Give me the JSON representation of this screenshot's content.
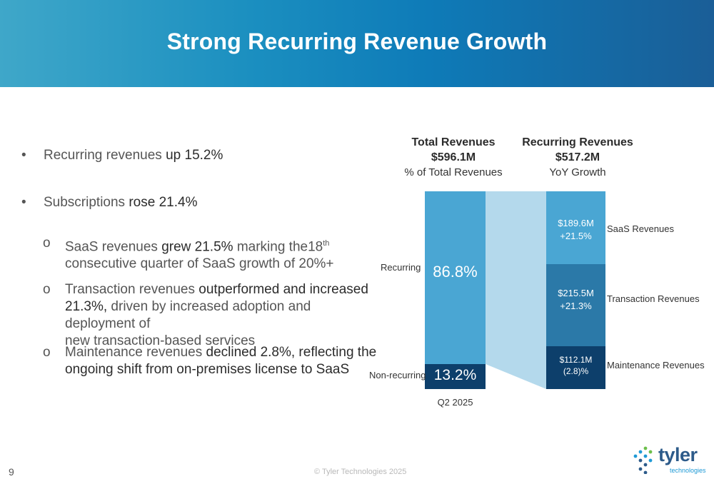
{
  "title": "Strong Recurring Revenue Growth",
  "bullets": {
    "b1_prefix": "Recurring revenues ",
    "b1_em": "up 15.2%",
    "b2_prefix": "Subscriptions ",
    "b2_em": "rose 21.4%",
    "s1_prefix": "SaaS revenues ",
    "s1_em": "grew 21.5%",
    "s1_rest": " marking the18",
    "s1_sup": "th",
    "s1_line2": "consecutive quarter of SaaS growth of 20%+",
    "s2_prefix": "Transaction revenues ",
    "s2_em1": "outperformed and increased",
    "s2_em2": "21.3%,",
    "s2_rest": " driven by increased adoption and deployment of",
    "s2_line3": "new transaction-based services",
    "s3_prefix": "Maintenance revenues ",
    "s3_em1": "declined 2.8%, reflecting the",
    "s3_em2": "ongoing shift from on-premises license to SaaS",
    "bullet_char": "•",
    "sub_char": "o"
  },
  "chart": {
    "left_title": "Total Revenues",
    "left_value": "$596.1M",
    "left_sub": "% of Total Revenues",
    "right_title": "Recurring Revenues",
    "right_value": "$517.2M",
    "right_sub": "YoY Growth",
    "xlabel": "Q2 2025",
    "cat_recurring": "Recurring",
    "cat_nonrecurring": "Non-recurring",
    "recurring_pct": "86.8%",
    "nonrecurring_pct": "13.2%",
    "saas_val": "$189.6M",
    "saas_growth": "+21.5%",
    "saas_label": "SaaS Revenues",
    "trans_val": "$215.5M",
    "trans_growth": "+21.3%",
    "trans_label": "Transaction Revenues",
    "maint_val": "$112.1M",
    "maint_growth": "(2.8)%",
    "maint_label": "Maintenance Revenues"
  },
  "chart_data": {
    "type": "bar",
    "title": "Total Revenues $596.1M / Recurring Revenues $517.2M",
    "categories": [
      "Q2 2025"
    ],
    "total_revenues_share": [
      {
        "name": "Recurring",
        "value": 86.8
      },
      {
        "name": "Non-recurring",
        "value": 13.2
      }
    ],
    "recurring_breakdown": [
      {
        "name": "SaaS Revenues",
        "value_musd": 189.6,
        "yoy_growth_pct": 21.5
      },
      {
        "name": "Transaction Revenues",
        "value_musd": 215.5,
        "yoy_growth_pct": 21.3
      },
      {
        "name": "Maintenance Revenues",
        "value_musd": 112.1,
        "yoy_growth_pct": -2.8
      }
    ],
    "colors": {
      "recurring": "#4aa6d3",
      "nonrecurring": "#0d3f6b",
      "saas": "#4aa6d3",
      "transaction": "#2b79a8",
      "maintenance": "#0d3f6b",
      "connector": "#b4d9ec"
    }
  },
  "footer": {
    "copyright": "© Tyler Technologies 2025",
    "page_number": "9",
    "logo_name": "tyler",
    "logo_sub": "technologies"
  }
}
